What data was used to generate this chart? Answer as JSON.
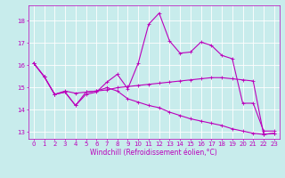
{
  "xlabel": "Windchill (Refroidissement éolien,°C)",
  "background_color": "#c8ecec",
  "grid_color": "#ffffff",
  "line_color": "#bb00bb",
  "xlim": [
    -0.5,
    23.5
  ],
  "ylim": [
    12.7,
    18.7
  ],
  "yticks": [
    13,
    14,
    15,
    16,
    17,
    18
  ],
  "xticks": [
    0,
    1,
    2,
    3,
    4,
    5,
    6,
    7,
    8,
    9,
    10,
    11,
    12,
    13,
    14,
    15,
    16,
    17,
    18,
    19,
    20,
    21,
    22,
    23
  ],
  "lines": [
    [
      16.1,
      15.5,
      14.7,
      14.8,
      14.2,
      14.7,
      14.8,
      15.25,
      15.6,
      14.95,
      16.1,
      17.85,
      18.35,
      17.1,
      16.55,
      16.6,
      17.05,
      16.9,
      16.45,
      16.3,
      14.3,
      14.3,
      13.05,
      13.05
    ],
    [
      16.1,
      15.5,
      14.7,
      14.8,
      14.2,
      14.8,
      14.85,
      15.0,
      14.85,
      14.5,
      14.35,
      14.2,
      14.1,
      13.9,
      13.75,
      13.6,
      13.5,
      13.4,
      13.3,
      13.15,
      13.05,
      12.95,
      12.9,
      12.95
    ],
    [
      16.1,
      15.5,
      14.7,
      14.85,
      14.75,
      14.8,
      14.85,
      14.9,
      15.0,
      15.05,
      15.1,
      15.15,
      15.2,
      15.25,
      15.3,
      15.35,
      15.4,
      15.45,
      15.45,
      15.4,
      15.35,
      15.3,
      12.9,
      12.95
    ]
  ],
  "tick_labelsize": 5,
  "xlabel_fontsize": 5.5,
  "linewidth": 0.8,
  "markersize": 2.5
}
